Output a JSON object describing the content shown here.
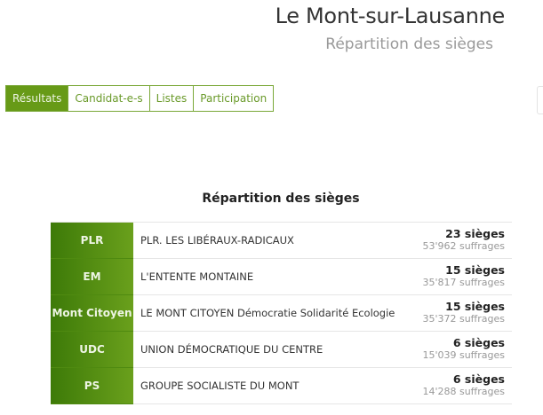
{
  "header": {
    "title": "Le Mont-sur-Lausanne",
    "subtitle": "Répartition des sièges"
  },
  "tabs": [
    {
      "label": "Résultats",
      "active": true
    },
    {
      "label": "Candidat-e-s"
    },
    {
      "label": "Listes"
    },
    {
      "label": "Participation"
    }
  ],
  "section_title": "Répartition des sièges",
  "colors": {
    "accent": "#679a17"
  },
  "parties": [
    {
      "abbr": "PLR",
      "name": "PLR. LES LIBÉRAUX-RADICAUX",
      "seats": "23 sièges",
      "votes": "53'962 suffrages"
    },
    {
      "abbr": "EM",
      "name": "L'ENTENTE MONTAINE",
      "seats": "15 sièges",
      "votes": "35'817 suffrages"
    },
    {
      "abbr": "Mont Citoyen",
      "name": "LE MONT CITOYEN Démocratie Solidarité Ecologie",
      "seats": "15 sièges",
      "votes": "35'372 suffrages"
    },
    {
      "abbr": "UDC",
      "name": "UNION DÉMOCRATIQUE DU CENTRE",
      "seats": "6 sièges",
      "votes": "15'039 suffrages"
    },
    {
      "abbr": "PS",
      "name": "GROUPE SOCIALISTE DU MONT",
      "seats": "6 sièges",
      "votes": "14'288 suffrages"
    }
  ]
}
